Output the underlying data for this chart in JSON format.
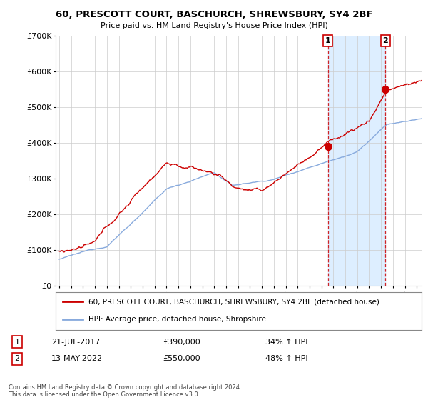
{
  "title": "60, PRESCOTT COURT, BASCHURCH, SHREWSBURY, SY4 2BF",
  "subtitle": "Price paid vs. HM Land Registry's House Price Index (HPI)",
  "legend_property": "60, PRESCOTT COURT, BASCHURCH, SHREWSBURY, SY4 2BF (detached house)",
  "legend_hpi": "HPI: Average price, detached house, Shropshire",
  "annotation1_date": "21-JUL-2017",
  "annotation1_price": "£390,000",
  "annotation1_hpi": "34% ↑ HPI",
  "annotation2_date": "13-MAY-2022",
  "annotation2_price": "£550,000",
  "annotation2_hpi": "48% ↑ HPI",
  "footer": "Contains HM Land Registry data © Crown copyright and database right 2024.\nThis data is licensed under the Open Government Licence v3.0.",
  "property_color": "#cc0000",
  "hpi_color": "#88aadd",
  "shade_color": "#ddeeff",
  "vline_color": "#cc0000",
  "background_color": "#ffffff",
  "ylim": [
    0,
    700000
  ],
  "yticks": [
    0,
    100000,
    200000,
    300000,
    400000,
    500000,
    600000,
    700000
  ],
  "sale1_year": 2017.55,
  "sale1_price": 390000,
  "sale2_year": 2022.37,
  "sale2_price": 550000,
  "xmin": 1995,
  "xmax": 2025
}
